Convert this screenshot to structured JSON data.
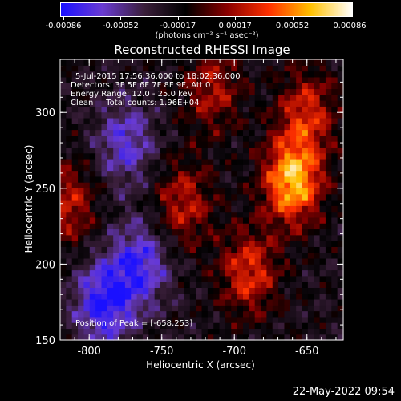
{
  "colorbar": {
    "tick_labels": [
      "-0.00086",
      "-0.00052",
      "-0.00017",
      "0.00017",
      "0.00052",
      "0.00086"
    ],
    "units": "(photons cm⁻² s⁻¹ asec⁻²)",
    "colors": [
      "#1a10ff",
      "#6a3bd2",
      "#3a1e3a",
      "#000000",
      "#8a0000",
      "#ff3000",
      "#ffc000",
      "#ffffff"
    ]
  },
  "title": "Reconstructed RHESSI Image",
  "info": {
    "time_range": "5-Jul-2015 17:56:36.000 to 18:02:36.000",
    "detectors": "Detectors: 3F 5F 6F 7F 8F 9F, Att 0",
    "energy": "Energy Range: 12.0 - 25.0 keV",
    "clean": "Clean     Total counts: 1.96E+04"
  },
  "peak_label": "Position of Peak = [-658,253]",
  "timestamp": "22-May-2022 09:54",
  "chart_data": {
    "type": "heatmap",
    "title": "Reconstructed RHESSI Image",
    "xlabel": "Heliocentric X (arcsec)",
    "ylabel": "Heliocentric Y (arcsec)",
    "xlim": [
      -820,
      -625
    ],
    "ylim": [
      150,
      335
    ],
    "x_ticks": [
      -800,
      -750,
      -700,
      -650
    ],
    "y_ticks": [
      150,
      200,
      250,
      300
    ],
    "x_tick_labels": [
      "-800",
      "-750",
      "-700",
      "-650"
    ],
    "y_tick_labels": [
      "150",
      "200",
      "250",
      "300"
    ],
    "value_range": [
      -0.00086,
      0.00086
    ],
    "peak": {
      "x": -658,
      "y": 253
    },
    "features": [
      {
        "region": "right bright source",
        "x": -660,
        "y": 255,
        "level": 1.0
      },
      {
        "region": "right upper",
        "x": -650,
        "y": 300,
        "level": 0.55
      },
      {
        "region": "center lower",
        "x": -690,
        "y": 195,
        "level": 0.6
      },
      {
        "region": "center middle",
        "x": -735,
        "y": 240,
        "level": 0.5
      },
      {
        "region": "left edge",
        "x": -815,
        "y": 240,
        "level": 0.5
      },
      {
        "region": "upper center arc",
        "x": -715,
        "y": 315,
        "level": 0.45
      },
      {
        "region": "left lower negative",
        "x": -790,
        "y": 175,
        "level": -0.7
      },
      {
        "region": "left center negative",
        "x": -775,
        "y": 280,
        "level": -0.5
      },
      {
        "region": "lower middle negative",
        "x": -765,
        "y": 200,
        "level": -0.6
      }
    ]
  }
}
